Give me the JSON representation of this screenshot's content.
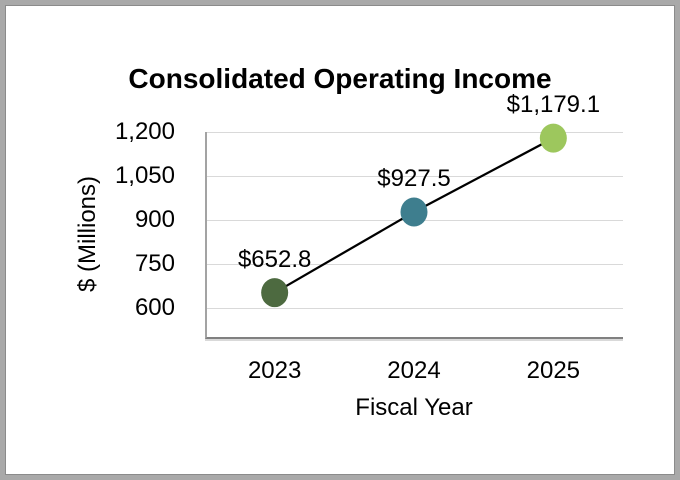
{
  "window": {
    "background_color": "#ffffff",
    "border_color": "#a9a9a9"
  },
  "chart_data": {
    "type": "line",
    "title": "Consolidated Operating Income",
    "xlabel": "Fiscal Year",
    "ylabel": "$ (Millions)",
    "categories": [
      "2023",
      "2024",
      "2025"
    ],
    "series": [
      {
        "name": "Consolidated Operating Income",
        "values": [
          652.8,
          927.5,
          1179.1
        ]
      }
    ],
    "data_labels": [
      "$652.8",
      "$927.5",
      "$1,179.1"
    ],
    "y_ticks": [
      600,
      750,
      900,
      1050,
      1200
    ],
    "y_tick_labels": [
      "600",
      "750",
      "900",
      "1,050",
      "1,200"
    ],
    "ylim": [
      495,
      1200
    ],
    "grid": "horizontal",
    "legend": "none",
    "line_color": "#000000",
    "point_colors": [
      "#4d6a40",
      "#3e7e8e",
      "#9dc75d"
    ],
    "gridline_color": "#d9d9d9",
    "axis_line_color": "#808080",
    "text_color": "#000000"
  }
}
